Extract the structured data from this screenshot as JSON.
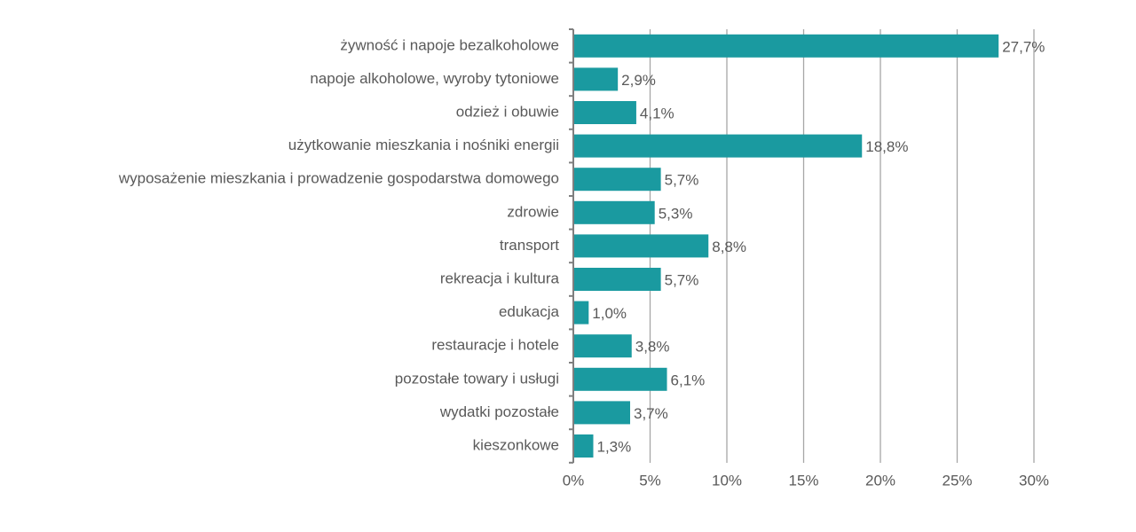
{
  "chart_data": {
    "type": "bar",
    "orientation": "horizontal",
    "categories": [
      "żywność i napoje bezalkoholowe",
      "napoje alkoholowe, wyroby tytoniowe",
      "odzież i obuwie",
      "użytkowanie mieszkania i nośniki energii",
      "wyposażenie mieszkania i prowadzenie gospodarstwa domowego",
      "zdrowie",
      "transport",
      "rekreacja i kultura",
      "edukacja",
      "restauracje i hotele",
      "pozostałe towary i usługi",
      "wydatki pozostałe",
      "kieszonkowe"
    ],
    "values": [
      27.7,
      2.9,
      4.1,
      18.8,
      5.7,
      5.3,
      8.8,
      5.7,
      1.0,
      3.8,
      6.1,
      3.7,
      1.3
    ],
    "value_labels": [
      "27,7%",
      "2,9%",
      "4,1%",
      "18,8%",
      "5,7%",
      "5,3%",
      "8,8%",
      "5,7%",
      "1,0%",
      "3,8%",
      "6,1%",
      "3,7%",
      "1,3%"
    ],
    "x_ticks": [
      "0%",
      "5%",
      "10%",
      "15%",
      "20%",
      "25%",
      "30%"
    ],
    "xlim": [
      0,
      30
    ],
    "grid": "vertical",
    "legend": "none",
    "bar_color": "#1a9aa0",
    "title": "",
    "xlabel": "",
    "ylabel": ""
  }
}
